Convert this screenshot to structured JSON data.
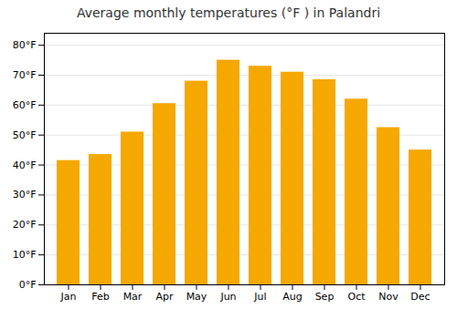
{
  "chart_data": {
    "type": "bar",
    "title": "Average monthly temperatures (°F ) in Palandri",
    "categories": [
      "Jan",
      "Feb",
      "Mar",
      "Apr",
      "May",
      "Jun",
      "Jul",
      "Aug",
      "Sep",
      "Oct",
      "Nov",
      "Dec"
    ],
    "values": [
      41.5,
      43.5,
      51.0,
      60.5,
      68.0,
      75.0,
      73.0,
      71.0,
      68.5,
      62.0,
      52.5,
      45.0
    ],
    "color": "#F5A800",
    "ylim": [
      0,
      84
    ],
    "yticks": [
      {
        "value": 0,
        "label": "0°F"
      },
      {
        "value": 10,
        "label": "10°F"
      },
      {
        "value": 20,
        "label": "20°F"
      },
      {
        "value": 30,
        "label": "30°F"
      },
      {
        "value": 40,
        "label": "40°F"
      },
      {
        "value": 50,
        "label": "50°F"
      },
      {
        "value": 60,
        "label": "60°F"
      },
      {
        "value": 70,
        "label": "70°F"
      },
      {
        "value": 80,
        "label": "80°F"
      }
    ],
    "grid": true
  }
}
